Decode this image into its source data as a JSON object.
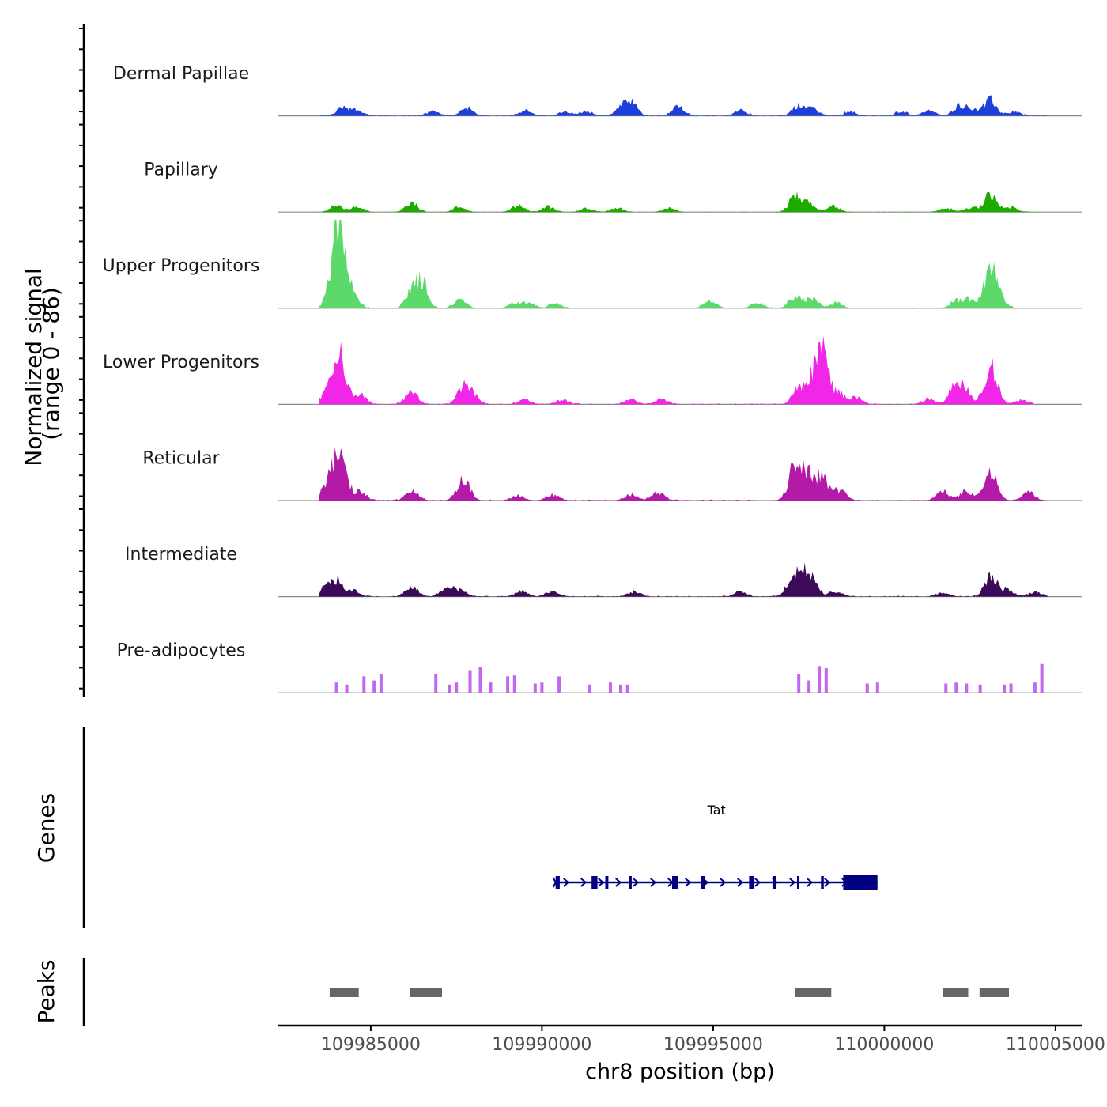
{
  "chart_data": {
    "type": "area",
    "title": "",
    "ylabel": "Normalized signal\n(range 0 - 86)",
    "ylabel_lines": [
      "Normalized signal",
      "(range 0 - 86)"
    ],
    "y_range": [
      0,
      86
    ],
    "xlabel": "chr8 position (bp)",
    "xlim": [
      109982300,
      110005000
    ],
    "x_ticks": [
      {
        "value": 109985000,
        "label": "109985000"
      },
      {
        "value": 109990000,
        "label": "109990000"
      },
      {
        "value": 109995000,
        "label": "109995000"
      },
      {
        "value": 110000000,
        "label": "110000000"
      },
      {
        "value": 110005000,
        "label": "110005000"
      }
    ],
    "series": [
      {
        "name": "Dermal Papillae",
        "color": "#1f3fdb",
        "sparse": false,
        "noise": 0.08,
        "peaks": [
          [
            109984200,
            10
          ],
          [
            109984600,
            6
          ],
          [
            109986800,
            5
          ],
          [
            109987800,
            9
          ],
          [
            109989500,
            6
          ],
          [
            109990700,
            5
          ],
          [
            109991300,
            5
          ],
          [
            109992300,
            7
          ],
          [
            109992600,
            14
          ],
          [
            109994000,
            10
          ],
          [
            109995800,
            6
          ],
          [
            109997500,
            11
          ],
          [
            109997900,
            8
          ],
          [
            109999000,
            5
          ],
          [
            110000500,
            5
          ],
          [
            110001300,
            6
          ],
          [
            110002200,
            12
          ],
          [
            110002600,
            7
          ],
          [
            110003100,
            17
          ],
          [
            110003800,
            5
          ]
        ]
      },
      {
        "name": "Papillary",
        "color": "#1faa00",
        "sparse": false,
        "noise": 0.05,
        "peaks": [
          [
            109984000,
            7
          ],
          [
            109984600,
            6
          ],
          [
            109986200,
            10
          ],
          [
            109987600,
            6
          ],
          [
            109989300,
            7
          ],
          [
            109990200,
            6
          ],
          [
            109991300,
            4
          ],
          [
            109992200,
            5
          ],
          [
            109993700,
            4
          ],
          [
            109997400,
            17
          ],
          [
            109997800,
            9
          ],
          [
            109998500,
            6
          ],
          [
            110001800,
            4
          ],
          [
            110002500,
            5
          ],
          [
            110003100,
            22
          ],
          [
            110003700,
            5
          ]
        ]
      },
      {
        "name": "Upper Progenitors",
        "color": "#5cd96a",
        "sparse": false,
        "noise": 0.07,
        "peaks": [
          [
            109983900,
            30
          ],
          [
            109984100,
            78
          ],
          [
            109984500,
            12
          ],
          [
            109986200,
            18
          ],
          [
            109986500,
            27
          ],
          [
            109987600,
            9
          ],
          [
            109989200,
            5
          ],
          [
            109989600,
            6
          ],
          [
            109990400,
            5
          ],
          [
            109994900,
            8
          ],
          [
            109996300,
            6
          ],
          [
            109997400,
            14
          ],
          [
            109997900,
            12
          ],
          [
            109998600,
            6
          ],
          [
            110002100,
            8
          ],
          [
            110002500,
            9
          ],
          [
            110003100,
            44
          ],
          [
            110003400,
            7
          ]
        ]
      },
      {
        "name": "Lower Progenitors",
        "color": "#f027e6",
        "sparse": false,
        "noise": 0.1,
        "peaks": [
          [
            109983800,
            20
          ],
          [
            109984100,
            55
          ],
          [
            109984700,
            10
          ],
          [
            109986200,
            14
          ],
          [
            109987700,
            18
          ],
          [
            109988000,
            9
          ],
          [
            109989500,
            5
          ],
          [
            109990600,
            5
          ],
          [
            109992600,
            5
          ],
          [
            109993500,
            6
          ],
          [
            109997500,
            17
          ],
          [
            109997900,
            24
          ],
          [
            109998200,
            56
          ],
          [
            109998700,
            12
          ],
          [
            109999200,
            7
          ],
          [
            110001300,
            6
          ],
          [
            110002100,
            24
          ],
          [
            110002400,
            11
          ],
          [
            110003100,
            45
          ],
          [
            110004000,
            5
          ]
        ]
      },
      {
        "name": "Reticular",
        "color": "#b41aa8",
        "sparse": false,
        "noise": 0.09,
        "peaks": [
          [
            109983700,
            12
          ],
          [
            109984000,
            35
          ],
          [
            109984200,
            20
          ],
          [
            109984700,
            9
          ],
          [
            109986200,
            11
          ],
          [
            109987700,
            25
          ],
          [
            109989300,
            6
          ],
          [
            109990300,
            6
          ],
          [
            109992600,
            7
          ],
          [
            109993400,
            9
          ],
          [
            109997400,
            42
          ],
          [
            109997800,
            30
          ],
          [
            109998200,
            24
          ],
          [
            109998700,
            11
          ],
          [
            110001700,
            11
          ],
          [
            110002400,
            10
          ],
          [
            110003100,
            32
          ],
          [
            110004200,
            9
          ]
        ]
      },
      {
        "name": "Intermediate",
        "color": "#3b0b5a",
        "sparse": false,
        "noise": 0.09,
        "peaks": [
          [
            109983700,
            10
          ],
          [
            109984000,
            18
          ],
          [
            109984500,
            7
          ],
          [
            109986200,
            11
          ],
          [
            109987200,
            9
          ],
          [
            109987600,
            8
          ],
          [
            109989400,
            6
          ],
          [
            109990300,
            5
          ],
          [
            109992700,
            5
          ],
          [
            109995800,
            6
          ],
          [
            109997300,
            15
          ],
          [
            109997600,
            22
          ],
          [
            109997900,
            16
          ],
          [
            109998600,
            6
          ],
          [
            110001700,
            5
          ],
          [
            110003100,
            23
          ],
          [
            110003600,
            8
          ],
          [
            110004400,
            6
          ]
        ]
      },
      {
        "name": "Pre-adipocytes",
        "color": "#c267f0",
        "sparse": true,
        "noise": 0,
        "peaks": [
          [
            109984000,
            10
          ],
          [
            109984300,
            8
          ],
          [
            109984800,
            16
          ],
          [
            109985100,
            12
          ],
          [
            109985300,
            18
          ],
          [
            109986900,
            18
          ],
          [
            109987300,
            8
          ],
          [
            109987500,
            10
          ],
          [
            109987900,
            22
          ],
          [
            109988200,
            25
          ],
          [
            109988500,
            10
          ],
          [
            109989000,
            16
          ],
          [
            109989200,
            17
          ],
          [
            109989800,
            9
          ],
          [
            109990000,
            10
          ],
          [
            109990500,
            16
          ],
          [
            109991400,
            8
          ],
          [
            109992000,
            10
          ],
          [
            109992300,
            8
          ],
          [
            109992500,
            8
          ],
          [
            109997500,
            18
          ],
          [
            109997800,
            12
          ],
          [
            109998100,
            26
          ],
          [
            109998300,
            24
          ],
          [
            109999500,
            9
          ],
          [
            109999800,
            10
          ],
          [
            110001800,
            9
          ],
          [
            110002100,
            10
          ],
          [
            110002400,
            9
          ],
          [
            110002800,
            8
          ],
          [
            110003500,
            8
          ],
          [
            110003700,
            9
          ],
          [
            110004400,
            10
          ],
          [
            110004600,
            28
          ]
        ]
      }
    ],
    "gene": {
      "name": "Tat",
      "start": 109990400,
      "end": 109999800,
      "exons": [
        [
          109990400,
          109990520
        ],
        [
          109991450,
          109991620
        ],
        [
          109991850,
          109991940
        ],
        [
          109992540,
          109992620
        ],
        [
          109993800,
          109993970
        ],
        [
          109994650,
          109994760
        ],
        [
          109996050,
          109996200
        ],
        [
          109996750,
          109996850
        ],
        [
          109997450,
          109997510
        ],
        [
          109998150,
          109998230
        ],
        [
          109998800,
          109999800
        ]
      ],
      "strand": "+",
      "color": "#000080"
    },
    "peaks": [
      {
        "start": 109983800,
        "end": 109984650
      },
      {
        "start": 109986150,
        "end": 109987080
      },
      {
        "start": 109997380,
        "end": 109998450
      },
      {
        "start": 110001720,
        "end": 110002450
      },
      {
        "start": 110002780,
        "end": 110003640
      }
    ],
    "panel_labels": {
      "genes": "Genes",
      "peaks": "Peaks"
    }
  }
}
